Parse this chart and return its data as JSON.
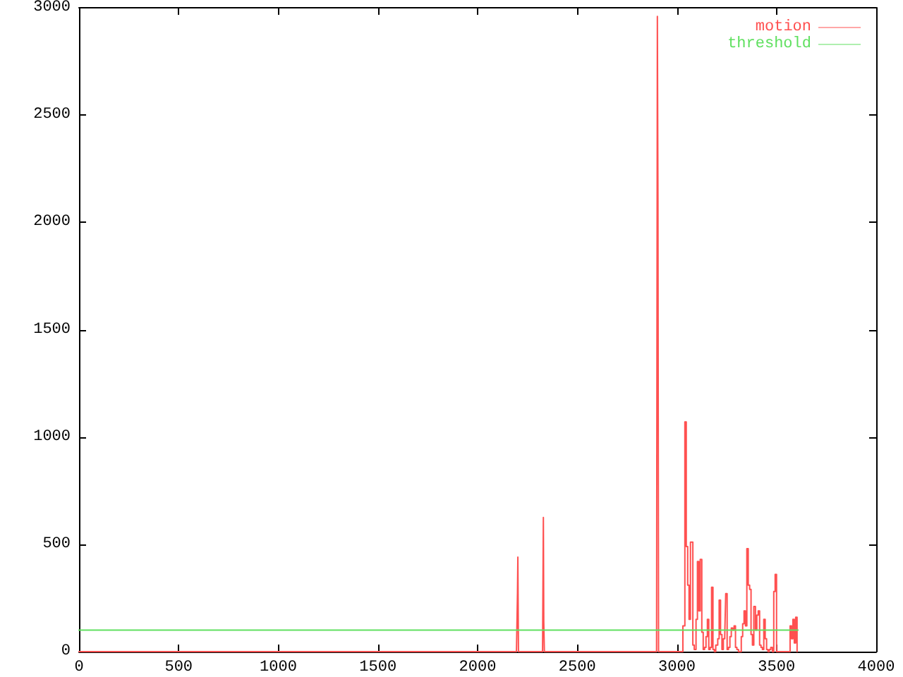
{
  "chart_data": {
    "type": "step",
    "xlim": [
      0,
      4000
    ],
    "xticks": [
      0,
      500,
      1000,
      1500,
      2000,
      2500,
      3000,
      3500,
      4000
    ],
    "ylim": [
      0,
      3000
    ],
    "yticks": [
      0,
      500,
      1000,
      1500,
      2000,
      2500,
      3000
    ],
    "legend": "top right",
    "series": [
      {
        "name": "motion",
        "color": "#ff5050",
        "x": [
          0,
          2195,
          2200,
          2202,
          2205,
          2326,
          2330,
          2332,
          2335,
          2898,
          2902,
          2905,
          2908,
          3020,
          3030,
          3040,
          3047,
          3054,
          3061,
          3068,
          3080,
          3087,
          3096,
          3103,
          3110,
          3117,
          3125,
          3132,
          3139,
          3146,
          3153,
          3160,
          3167,
          3174,
          3181,
          3188,
          3195,
          3205,
          3212,
          3219,
          3226,
          3233,
          3240,
          3245,
          3252,
          3259,
          3266,
          3273,
          3280,
          3287,
          3294,
          3301,
          3309,
          3316,
          3323,
          3330,
          3337,
          3344,
          3351,
          3358,
          3365,
          3372,
          3379,
          3386,
          3394,
          3401,
          3408,
          3415,
          3422,
          3429,
          3436,
          3443,
          3450,
          3457,
          3464,
          3471,
          3479,
          3486,
          3493,
          3500,
          3560,
          3568,
          3575,
          3582,
          3589,
          3596,
          3603,
          3608
        ],
        "values": [
          0,
          0,
          270,
          440,
          0,
          0,
          625,
          140,
          0,
          0,
          2960,
          2100,
          0,
          0,
          120,
          1070,
          490,
          310,
          150,
          510,
          30,
          10,
          150,
          420,
          190,
          430,
          90,
          10,
          20,
          70,
          150,
          10,
          20,
          300,
          10,
          0,
          30,
          60,
          240,
          80,
          10,
          60,
          70,
          270,
          10,
          20,
          70,
          110,
          100,
          120,
          20,
          10,
          0,
          0,
          70,
          130,
          190,
          120,
          480,
          310,
          290,
          80,
          30,
          210,
          100,
          170,
          190,
          30,
          20,
          10,
          150,
          60,
          10,
          0,
          10,
          20,
          0,
          280,
          360,
          0,
          0,
          120,
          60,
          150,
          40,
          160,
          0,
          0
        ]
      },
      {
        "name": "threshold",
        "type": "line",
        "color": "#60e060",
        "x": [
          0,
          3608
        ],
        "values": [
          100,
          100
        ]
      }
    ]
  }
}
